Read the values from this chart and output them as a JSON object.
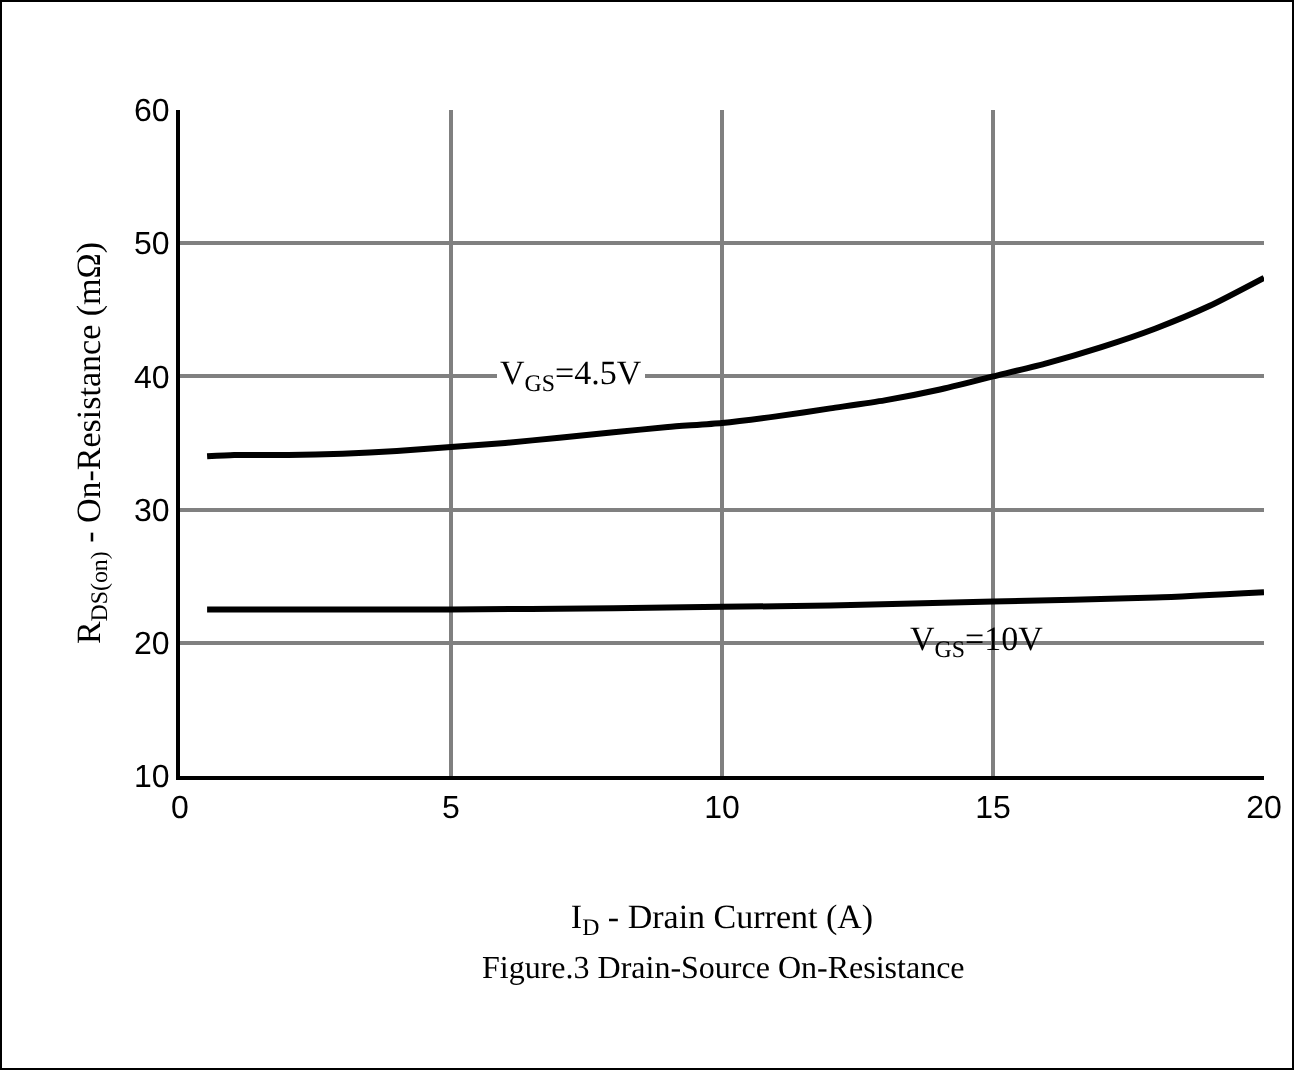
{
  "chart_data": {
    "type": "line",
    "xlabel": "I$_{D}$ - Drain Current (A)",
    "ylabel": "R$_{DS(on)}$ - On-Resistance (mΩ)",
    "annotations": [
      "Figure.3 Drain-Source On-Resistance"
    ],
    "xlim": [
      0,
      20
    ],
    "ylim": [
      10,
      60
    ],
    "xticks": [
      0,
      5,
      10,
      15,
      20
    ],
    "yticks": [
      10,
      20,
      30,
      40,
      50,
      60
    ],
    "grid": true,
    "legend": false,
    "marker": "none",
    "line_style": "solid",
    "series": [
      {
        "name": "V$_{GS}$=4.5V",
        "color": "#000000",
        "x": [
          0.5,
          1,
          2,
          3,
          4,
          5,
          6,
          7,
          8,
          9,
          10,
          11,
          12,
          13,
          14,
          15,
          16,
          17,
          18,
          19,
          20
        ],
        "values": [
          34,
          34.1,
          34.1,
          34.2,
          34.4,
          34.7,
          35,
          35.4,
          35.8,
          36.2,
          36.5,
          37,
          37.6,
          38.2,
          39,
          40,
          41,
          42.2,
          43.6,
          45.3,
          47.4
        ]
      },
      {
        "name": "V$_{GS}$=10V",
        "color": "#000000",
        "x": [
          0.5,
          2,
          5,
          8,
          10,
          12,
          15,
          18,
          20
        ],
        "values": [
          22.5,
          22.5,
          22.5,
          22.6,
          22.7,
          22.8,
          23.1,
          23.4,
          23.8
        ]
      }
    ]
  }
}
